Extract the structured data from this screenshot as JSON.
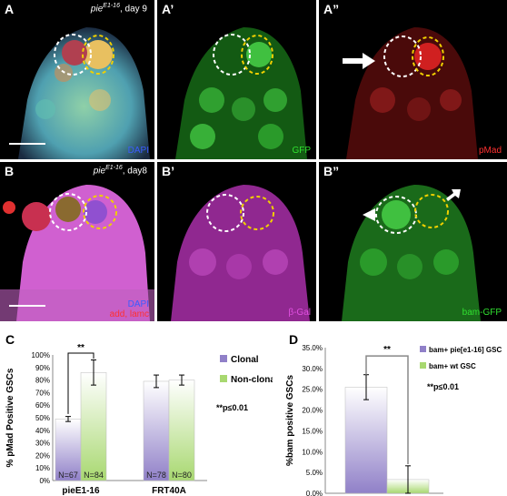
{
  "panels_row1": [
    {
      "label": "A",
      "stain": "DAPI",
      "stain_color": "#3a5cff",
      "genotype": "pie",
      "genotype_sup": "E1-16",
      "genotype_tail": ", day 9"
    },
    {
      "label": "A’",
      "stain": "GFP",
      "stain_color": "#30e030"
    },
    {
      "label": "A”",
      "stain": "pMad",
      "stain_color": "#ff3030"
    }
  ],
  "panels_row2": [
    {
      "label": "B",
      "stain_lines": [
        "DAPI",
        "add, lamc"
      ],
      "stain_colors": [
        "#3a5cff",
        "#ff3030"
      ],
      "genotype": "pie",
      "genotype_sup": "E1-16",
      "genotype_tail": ", day8"
    },
    {
      "label": "B’",
      "stain": "β-Gal",
      "stain_color": "#e050e0"
    },
    {
      "label": "B”",
      "stain": "bam-GFP",
      "stain_color": "#30e030"
    }
  ],
  "chart_data": [
    {
      "panel": "C",
      "type": "bar",
      "categories": [
        "pieE1-16",
        "FRT40A"
      ],
      "series": [
        {
          "name": "Clonal",
          "values": [
            49,
            79
          ],
          "n": [
            "N=67",
            "N=78"
          ],
          "color": "#9080c8"
        },
        {
          "name": "Non-clonal",
          "values": [
            86,
            80
          ],
          "n": [
            "N=84",
            "N=80"
          ],
          "color": "#a8d870"
        }
      ],
      "errors": [
        [
          2,
          5
        ],
        [
          10,
          4
        ]
      ],
      "ylabel": "% pMad Positive GSCs",
      "ylim": [
        0,
        100
      ],
      "ytick_labels": [
        "0%",
        "10%",
        "20%",
        "30%",
        "40%",
        "50%",
        "60%",
        "70%",
        "80%",
        "90%",
        "100%"
      ],
      "significance": "**",
      "note": "**p≤0.01"
    },
    {
      "panel": "D",
      "type": "bar",
      "categories": [
        ""
      ],
      "series": [
        {
          "name": "bam+ pie[e1-16] GSC",
          "values": [
            25.5
          ],
          "color": "#9080c8"
        },
        {
          "name": "bam+ wt GSC",
          "values": [
            3.3
          ],
          "color": "#a8d870"
        }
      ],
      "errors": [
        [
          3
        ],
        [
          3.3
        ]
      ],
      "ylabel": "%bam positive GSCs",
      "ylim": [
        0,
        35
      ],
      "ytick_labels": [
        "0.0%",
        "5.0%",
        "10.0%",
        "15.0%",
        "20.0%",
        "25.0%",
        "30.0%",
        "35.0%"
      ],
      "significance": "**",
      "note": "**p≤0.01"
    }
  ]
}
